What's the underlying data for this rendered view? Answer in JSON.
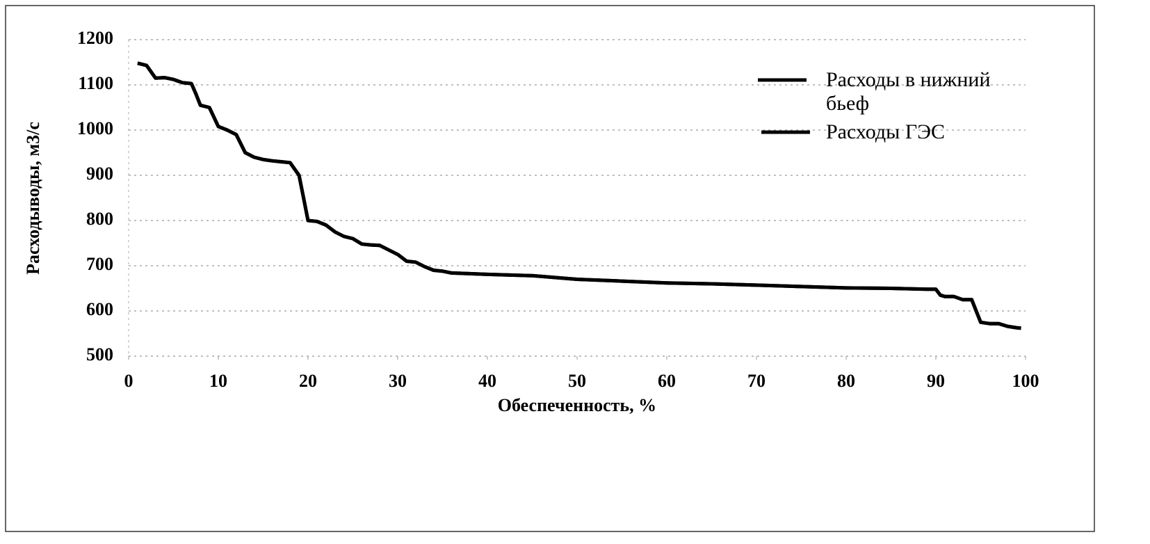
{
  "chart_data": {
    "type": "line",
    "x_label": "Обеспеченность, %",
    "y_label": "Расходыводы, м3/с",
    "x": [
      1,
      2,
      3,
      4,
      5,
      6,
      7,
      7.5,
      8,
      9,
      10,
      11,
      12,
      13,
      14,
      15,
      16,
      17,
      18,
      19,
      19.5,
      20,
      21,
      22,
      23,
      24,
      25,
      26,
      27,
      28,
      29,
      30,
      31,
      32,
      33,
      34,
      35,
      36,
      40,
      45,
      50,
      55,
      60,
      65,
      70,
      75,
      80,
      85,
      89,
      90,
      90.5,
      91,
      92,
      93,
      94,
      95,
      96,
      97,
      98,
      99,
      99.5
    ],
    "series": [
      {
        "name": "Расходы в нижний бьеф",
        "color": "#000000",
        "values": [
          1148,
          1143,
          1115,
          1116,
          1112,
          1105,
          1103,
          1080,
          1055,
          1050,
          1008,
          1000,
          990,
          950,
          940,
          935,
          932,
          930,
          928,
          900,
          850,
          800,
          798,
          790,
          775,
          765,
          760,
          748,
          746,
          745,
          735,
          725,
          710,
          708,
          698,
          690,
          688,
          684,
          681,
          678,
          670,
          666,
          662,
          660,
          657,
          654,
          651,
          650,
          648,
          648,
          635,
          632,
          632,
          625,
          625,
          575,
          572,
          572,
          566,
          563,
          562
        ]
      },
      {
        "name": "Расходы ГЭС",
        "color": "#000000",
        "values": [
          1148,
          1143,
          1115,
          1116,
          1112,
          1105,
          1103,
          1080,
          1055,
          1050,
          1008,
          1000,
          990,
          950,
          940,
          935,
          932,
          930,
          928,
          900,
          850,
          800,
          798,
          790,
          775,
          765,
          760,
          748,
          746,
          745,
          735,
          725,
          710,
          708,
          698,
          690,
          688,
          684,
          681,
          678,
          670,
          666,
          662,
          660,
          657,
          654,
          651,
          650,
          648,
          648,
          635,
          632,
          632,
          625,
          625,
          575,
          572,
          572,
          566,
          563,
          562
        ]
      }
    ],
    "xlim": [
      0,
      100
    ],
    "xticks": [
      0,
      10,
      20,
      30,
      40,
      50,
      60,
      70,
      80,
      90,
      100
    ],
    "ylim": [
      500,
      1200
    ],
    "yticks": [
      500,
      600,
      700,
      800,
      900,
      1000,
      1100,
      1200
    ],
    "grid": true
  }
}
